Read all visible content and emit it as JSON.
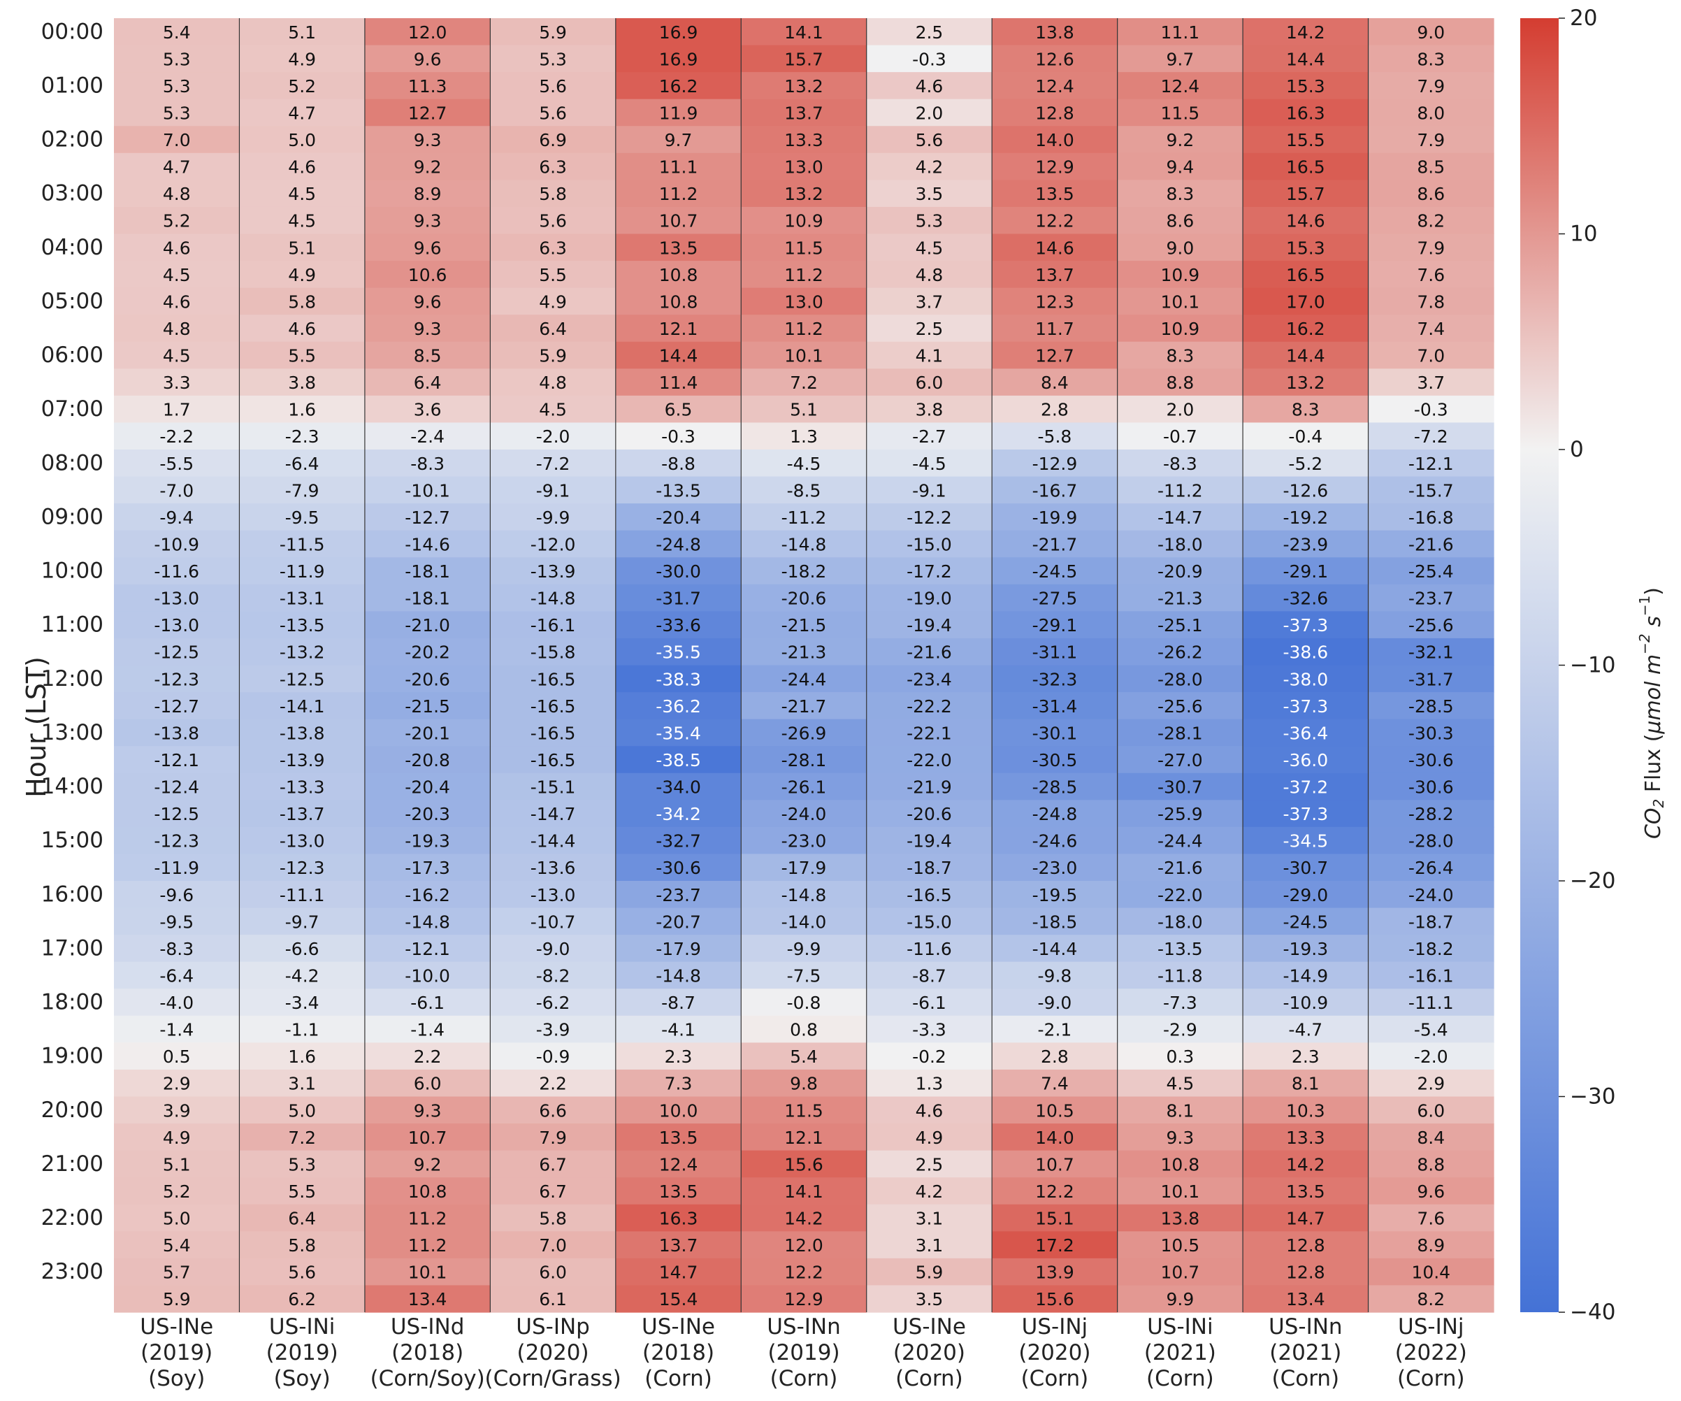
{
  "chart_data": {
    "type": "heatmap",
    "ylabel": "Hour (LST)",
    "colorbar": {
      "label_main": "CO",
      "label_sub": "2",
      "label_rest": " Flux (",
      "label_unit": "μmol m",
      "label_exp1": "−2",
      "label_mid": " s",
      "label_exp2": "−1",
      "label_close": ")",
      "range": [
        -40,
        20
      ],
      "ticks": [
        "20",
        "10",
        "0",
        "−10",
        "−20",
        "−30",
        "−40"
      ],
      "tick_values": [
        20,
        10,
        0,
        -10,
        -20,
        -30,
        -40
      ]
    },
    "colormap": {
      "low": "#4472d6",
      "mid": "#f2f2f2",
      "high": "#d43d31"
    },
    "y_tick_labels": [
      "00:00",
      "01:00",
      "02:00",
      "03:00",
      "04:00",
      "05:00",
      "06:00",
      "07:00",
      "08:00",
      "09:00",
      "10:00",
      "11:00",
      "12:00",
      "13:00",
      "14:00",
      "15:00",
      "16:00",
      "17:00",
      "18:00",
      "19:00",
      "20:00",
      "21:00",
      "22:00",
      "23:00"
    ],
    "columns": [
      {
        "site": "US-INe",
        "year": "(2019)",
        "crop": "(Soy)"
      },
      {
        "site": "US-INi",
        "year": "(2019)",
        "crop": "(Soy)"
      },
      {
        "site": "US-INd",
        "year": "(2018)",
        "crop": "(Corn/Soy)"
      },
      {
        "site": "US-INp",
        "year": "(2020)",
        "crop": "(Corn/Grass)"
      },
      {
        "site": "US-INe",
        "year": "(2018)",
        "crop": "(Corn)"
      },
      {
        "site": "US-INn",
        "year": "(2019)",
        "crop": "(Corn)"
      },
      {
        "site": "US-INe",
        "year": "(2020)",
        "crop": "(Corn)"
      },
      {
        "site": "US-INj",
        "year": "(2020)",
        "crop": "(Corn)"
      },
      {
        "site": "US-INi",
        "year": "(2021)",
        "crop": "(Corn)"
      },
      {
        "site": "US-INn",
        "year": "(2021)",
        "crop": "(Corn)"
      },
      {
        "site": "US-INj",
        "year": "(2022)",
        "crop": "(Corn)"
      }
    ],
    "values": [
      [
        5.4,
        5.1,
        12.0,
        5.9,
        16.9,
        14.1,
        2.5,
        13.8,
        11.1,
        14.2,
        9.0
      ],
      [
        5.3,
        4.9,
        9.6,
        5.3,
        16.9,
        15.7,
        -0.3,
        12.6,
        9.7,
        14.4,
        8.3
      ],
      [
        5.3,
        5.2,
        11.3,
        5.6,
        16.2,
        13.2,
        4.6,
        12.4,
        12.4,
        15.3,
        7.9
      ],
      [
        5.3,
        4.7,
        12.7,
        5.6,
        11.9,
        13.7,
        2.0,
        12.8,
        11.5,
        16.3,
        8.0
      ],
      [
        7.0,
        5.0,
        9.3,
        6.9,
        9.7,
        13.3,
        5.6,
        14.0,
        9.2,
        15.5,
        7.9
      ],
      [
        4.7,
        4.6,
        9.2,
        6.3,
        11.1,
        13.0,
        4.2,
        12.9,
        9.4,
        16.5,
        8.5
      ],
      [
        4.8,
        4.5,
        8.9,
        5.8,
        11.2,
        13.2,
        3.5,
        13.5,
        8.3,
        15.7,
        8.6
      ],
      [
        5.2,
        4.5,
        9.3,
        5.6,
        10.7,
        10.9,
        5.3,
        12.2,
        8.6,
        14.6,
        8.2
      ],
      [
        4.6,
        5.1,
        9.6,
        6.3,
        13.5,
        11.5,
        4.5,
        14.6,
        9.0,
        15.3,
        7.9
      ],
      [
        4.5,
        4.9,
        10.6,
        5.5,
        10.8,
        11.2,
        4.8,
        13.7,
        10.9,
        16.5,
        7.6
      ],
      [
        4.6,
        5.8,
        9.6,
        4.9,
        10.8,
        13.0,
        3.7,
        12.3,
        10.1,
        17.0,
        7.8
      ],
      [
        4.8,
        4.6,
        9.3,
        6.4,
        12.1,
        11.2,
        2.5,
        11.7,
        10.9,
        16.2,
        7.4
      ],
      [
        4.5,
        5.5,
        8.5,
        5.9,
        14.4,
        10.1,
        4.1,
        12.7,
        8.3,
        14.4,
        7.0
      ],
      [
        3.3,
        3.8,
        6.4,
        4.8,
        11.4,
        7.2,
        6.0,
        8.4,
        8.8,
        13.2,
        3.7
      ],
      [
        1.7,
        1.6,
        3.6,
        4.5,
        6.5,
        5.1,
        3.8,
        2.8,
        2.0,
        8.3,
        -0.3
      ],
      [
        -2.2,
        -2.3,
        -2.4,
        -2.0,
        -0.3,
        1.3,
        -2.7,
        -5.8,
        -0.7,
        -0.4,
        -7.2
      ],
      [
        -5.5,
        -6.4,
        -8.3,
        -7.2,
        -8.8,
        -4.5,
        -4.5,
        -12.9,
        -8.3,
        -5.2,
        -12.1
      ],
      [
        -7.0,
        -7.9,
        -10.1,
        -9.1,
        -13.5,
        -8.5,
        -9.1,
        -16.7,
        -11.2,
        -12.6,
        -15.7
      ],
      [
        -9.4,
        -9.5,
        -12.7,
        -9.9,
        -20.4,
        -11.2,
        -12.2,
        -19.9,
        -14.7,
        -19.2,
        -16.8
      ],
      [
        -10.9,
        -11.5,
        -14.6,
        -12.0,
        -24.8,
        -14.8,
        -15.0,
        -21.7,
        -18.0,
        -23.9,
        -21.6
      ],
      [
        -11.6,
        -11.9,
        -18.1,
        -13.9,
        -30.0,
        -18.2,
        -17.2,
        -24.5,
        -20.9,
        -29.1,
        -25.4
      ],
      [
        -13.0,
        -13.1,
        -18.1,
        -14.8,
        -31.7,
        -20.6,
        -19.0,
        -27.5,
        -21.3,
        -32.6,
        -23.7
      ],
      [
        -13.0,
        -13.5,
        -21.0,
        -16.1,
        -33.6,
        -21.5,
        -19.4,
        -29.1,
        -25.1,
        -37.3,
        -25.6
      ],
      [
        -12.5,
        -13.2,
        -20.2,
        -15.8,
        -35.5,
        -21.3,
        -21.6,
        -31.1,
        -26.2,
        -38.6,
        -32.1
      ],
      [
        -12.3,
        -12.5,
        -20.6,
        -16.5,
        -38.3,
        -24.4,
        -23.4,
        -32.3,
        -28.0,
        -38.0,
        -31.7
      ],
      [
        -12.7,
        -14.1,
        -21.5,
        -16.5,
        -36.2,
        -21.7,
        -22.2,
        -31.4,
        -25.6,
        -37.3,
        -28.5
      ],
      [
        -13.8,
        -13.8,
        -20.1,
        -16.5,
        -35.4,
        -26.9,
        -22.1,
        -30.1,
        -28.1,
        -36.4,
        -30.3
      ],
      [
        -12.1,
        -13.9,
        -20.8,
        -16.5,
        -38.5,
        -28.1,
        -22.0,
        -30.5,
        -27.0,
        -36.0,
        -30.6
      ],
      [
        -12.4,
        -13.3,
        -20.4,
        -15.1,
        -34.0,
        -26.1,
        -21.9,
        -28.5,
        -30.7,
        -37.2,
        -30.6
      ],
      [
        -12.5,
        -13.7,
        -20.3,
        -14.7,
        -34.2,
        -24.0,
        -20.6,
        -24.8,
        -25.9,
        -37.3,
        -28.2
      ],
      [
        -12.3,
        -13.0,
        -19.3,
        -14.4,
        -32.7,
        -23.0,
        -19.4,
        -24.6,
        -24.4,
        -34.5,
        -28.0
      ],
      [
        -11.9,
        -12.3,
        -17.3,
        -13.6,
        -30.6,
        -17.9,
        -18.7,
        -23.0,
        -21.6,
        -30.7,
        -26.4
      ],
      [
        -9.6,
        -11.1,
        -16.2,
        -13.0,
        -23.7,
        -14.8,
        -16.5,
        -19.5,
        -22.0,
        -29.0,
        -24.0
      ],
      [
        -9.5,
        -9.7,
        -14.8,
        -10.7,
        -20.7,
        -14.0,
        -15.0,
        -18.5,
        -18.0,
        -24.5,
        -18.7
      ],
      [
        -8.3,
        -6.6,
        -12.1,
        -9.0,
        -17.9,
        -9.9,
        -11.6,
        -14.4,
        -13.5,
        -19.3,
        -18.2
      ],
      [
        -6.4,
        -4.2,
        -10.0,
        -8.2,
        -14.8,
        -7.5,
        -8.7,
        -9.8,
        -11.8,
        -14.9,
        -16.1
      ],
      [
        -4.0,
        -3.4,
        -6.1,
        -6.2,
        -8.7,
        -0.8,
        -6.1,
        -9.0,
        -7.3,
        -10.9,
        -11.1
      ],
      [
        -1.4,
        -1.1,
        -1.4,
        -3.9,
        -4.1,
        0.8,
        -3.3,
        -2.1,
        -2.9,
        -4.7,
        -5.4
      ],
      [
        0.5,
        1.6,
        2.2,
        -0.9,
        2.3,
        5.4,
        -0.2,
        2.8,
        0.3,
        2.3,
        -2.0
      ],
      [
        2.9,
        3.1,
        6.0,
        2.2,
        7.3,
        9.8,
        1.3,
        7.4,
        4.5,
        8.1,
        2.9
      ],
      [
        3.9,
        5.0,
        9.3,
        6.6,
        10.0,
        11.5,
        4.6,
        10.5,
        8.1,
        10.3,
        6.0
      ],
      [
        4.9,
        7.2,
        10.7,
        7.9,
        13.5,
        12.1,
        4.9,
        14.0,
        9.3,
        13.3,
        8.4
      ],
      [
        5.1,
        5.3,
        9.2,
        6.7,
        12.4,
        15.6,
        2.5,
        10.7,
        10.8,
        14.2,
        8.8
      ],
      [
        5.2,
        5.5,
        10.8,
        6.7,
        13.5,
        14.1,
        4.2,
        12.2,
        10.1,
        13.5,
        9.6
      ],
      [
        5.0,
        6.4,
        11.2,
        5.8,
        16.3,
        14.2,
        3.1,
        15.1,
        13.8,
        14.7,
        7.6
      ],
      [
        5.4,
        5.8,
        11.2,
        7.0,
        13.7,
        12.0,
        3.1,
        17.2,
        10.5,
        12.8,
        8.9
      ],
      [
        5.7,
        5.6,
        10.1,
        6.0,
        14.7,
        12.2,
        5.9,
        13.9,
        10.7,
        12.8,
        10.4
      ],
      [
        5.9,
        6.2,
        13.4,
        6.1,
        15.4,
        12.9,
        3.5,
        15.6,
        9.9,
        13.4,
        8.2
      ]
    ]
  }
}
